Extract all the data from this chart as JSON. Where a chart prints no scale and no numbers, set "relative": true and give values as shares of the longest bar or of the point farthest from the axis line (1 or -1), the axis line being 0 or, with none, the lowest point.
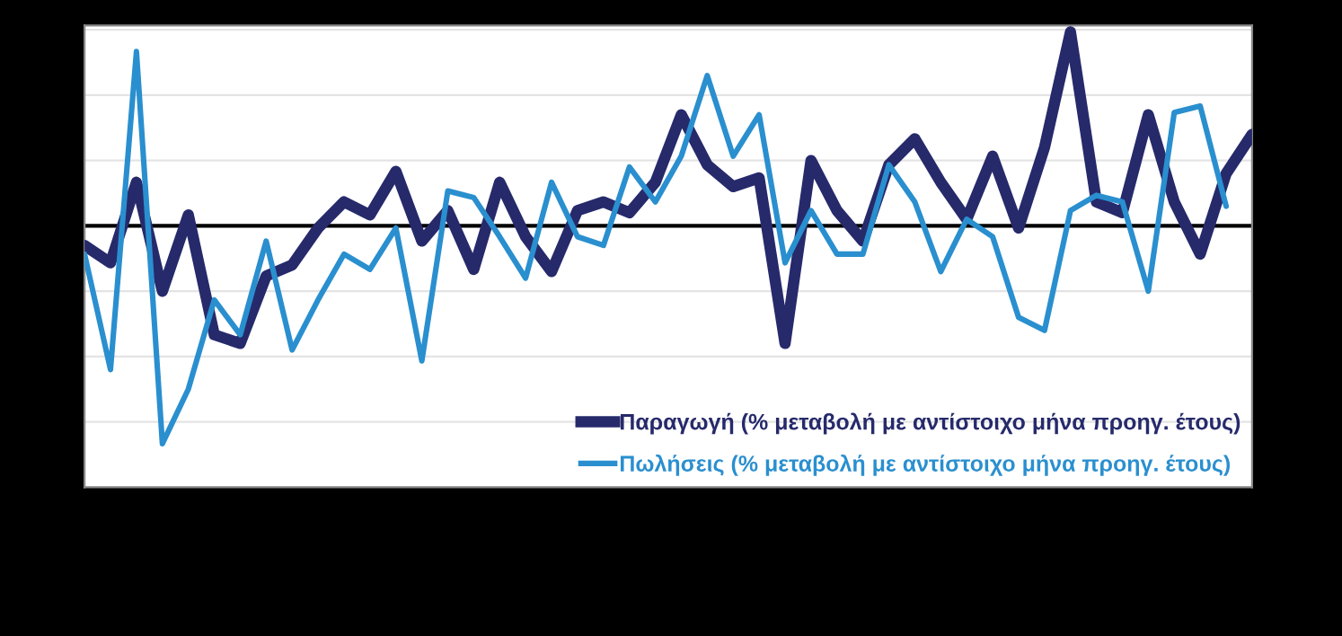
{
  "chart_data": {
    "type": "line",
    "relative": true,
    "grid": "y",
    "legend": "bottom right",
    "categories": [
      null,
      null,
      null,
      null,
      null,
      null,
      null,
      null,
      null,
      null,
      null,
      null,
      null,
      null,
      null,
      null,
      null,
      null,
      null,
      null,
      null,
      null,
      null,
      null,
      null,
      null,
      null,
      null,
      null,
      null,
      null,
      null,
      null,
      null,
      null,
      null,
      null,
      null,
      null,
      null,
      null,
      null,
      null,
      null,
      null,
      null
    ],
    "series": [
      {
        "name": "Παραγωγή (% μεταβολή με αντίστοιχο μήνα προηγ. έτους)",
        "color": "#262a6b",
        "values": [
          -0.09,
          -0.17,
          0.2,
          -0.3,
          0.05,
          -0.5,
          -0.54,
          -0.23,
          -0.18,
          -0.01,
          0.11,
          0.05,
          0.25,
          -0.07,
          0.07,
          -0.2,
          0.2,
          -0.05,
          -0.21,
          0.07,
          0.11,
          0.06,
          0.2,
          0.51,
          0.28,
          0.18,
          0.22,
          -0.54,
          0.3,
          0.07,
          -0.07,
          0.28,
          0.4,
          0.2,
          0.03,
          0.32,
          -0.01,
          0.36,
          0.89,
          0.11,
          0.06,
          0.51,
          0.11,
          -0.13,
          0.24,
          0.42
        ]
      },
      {
        "name": "Πωλήσεις (% μεταβολή με αντίστοιχο μήνα προηγ. έτους)",
        "color": "#2a8fcf",
        "values": [
          -0.13,
          -0.66,
          0.8,
          -1.0,
          -0.75,
          -0.34,
          -0.5,
          -0.07,
          -0.57,
          -0.34,
          -0.13,
          -0.2,
          -0.01,
          -0.62,
          0.16,
          0.13,
          -0.05,
          -0.24,
          0.2,
          -0.05,
          -0.09,
          0.27,
          0.11,
          0.32,
          0.69,
          0.32,
          0.51,
          -0.17,
          0.07,
          -0.13,
          -0.13,
          0.28,
          0.11,
          -0.21,
          0.03,
          -0.05,
          -0.42,
          -0.48,
          0.07,
          0.14,
          0.11,
          -0.3,
          0.52,
          0.55,
          0.09,
          null
        ]
      }
    ]
  }
}
